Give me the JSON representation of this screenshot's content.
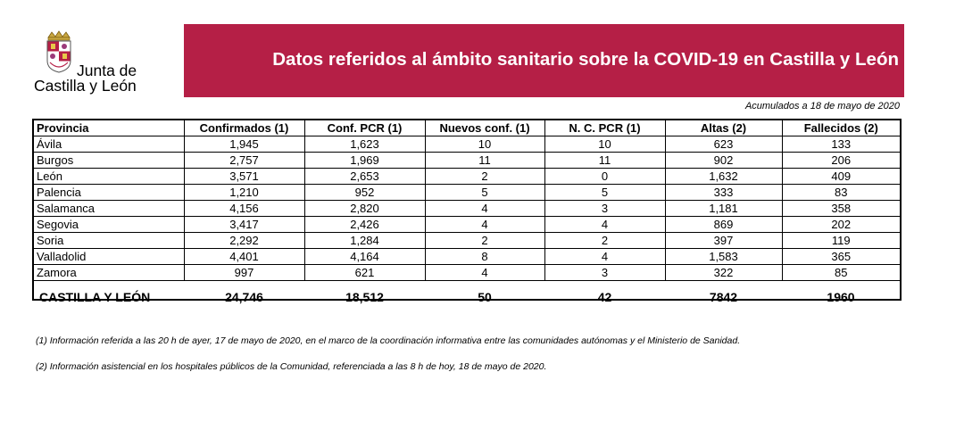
{
  "logo": {
    "line1": "Junta de",
    "line2": "Castilla y León"
  },
  "banner": {
    "title": "Datos referidos al ámbito sanitario sobre la COVID-19 en Castilla y León",
    "color": "#b51f46"
  },
  "accumulated": "Acumulados a 18 de mayo de 2020",
  "table": {
    "headers": [
      "Provincia",
      "Confirmados (1)",
      "Conf. PCR (1)",
      "Nuevos conf. (1)",
      "N. C. PCR (1)",
      "Altas (2)",
      "Fallecidos (2)"
    ],
    "rows": [
      [
        "Ávila",
        "1,945",
        "1,623",
        "10",
        "10",
        "623",
        "133"
      ],
      [
        "Burgos",
        "2,757",
        "1,969",
        "11",
        "11",
        "902",
        "206"
      ],
      [
        "León",
        "3,571",
        "2,653",
        "2",
        "0",
        "1,632",
        "409"
      ],
      [
        "Palencia",
        "1,210",
        "952",
        "5",
        "5",
        "333",
        "83"
      ],
      [
        "Salamanca",
        "4,156",
        "2,820",
        "4",
        "3",
        "1,181",
        "358"
      ],
      [
        "Segovia",
        "3,417",
        "2,426",
        "4",
        "4",
        "869",
        "202"
      ],
      [
        "Soria",
        "2,292",
        "1,284",
        "2",
        "2",
        "397",
        "119"
      ],
      [
        "Valladolid",
        "4,401",
        "4,164",
        "8",
        "4",
        "1,583",
        "365"
      ],
      [
        "Zamora",
        "997",
        "621",
        "4",
        "3",
        "322",
        "85"
      ]
    ],
    "total": [
      "CASTILLA Y LEÓN",
      "24,746",
      "18,512",
      "50",
      "42",
      "7842",
      "1960"
    ]
  },
  "notes": [
    "(1) Información referida a las 20 h de ayer, 17 de mayo de 2020, en el marco de la coordinación informativa entre las comunidades autónomas y el Ministerio de Sanidad.",
    "(2) Información asistencial en los hospitales públicos de la Comunidad, referenciada a las 8 h de hoy, 18 de mayo de 2020."
  ]
}
